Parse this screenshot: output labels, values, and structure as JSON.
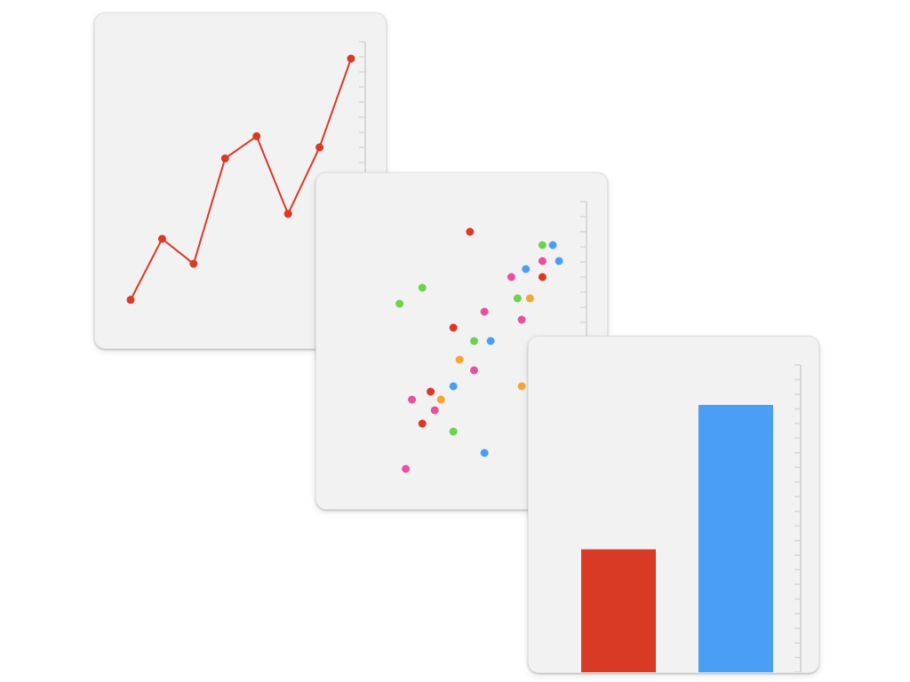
{
  "chart_data": [
    {
      "type": "line",
      "x": [
        1,
        2,
        3,
        4,
        5,
        6,
        7,
        8
      ],
      "series": [
        {
          "values": [
            3,
            25,
            16,
            54,
            62,
            34,
            58,
            90
          ],
          "color": "#d93a26"
        }
      ],
      "ylim": [
        0,
        100
      ],
      "axis_side": "right",
      "grid": false
    },
    {
      "type": "scatter",
      "xlim": [
        0,
        100
      ],
      "ylim": [
        0,
        100
      ],
      "axis_side": "right",
      "grid": false,
      "points": [
        {
          "x": 51,
          "y": 92,
          "color": "#d93a26"
        },
        {
          "x": 86,
          "y": 87,
          "color": "#6dd24f"
        },
        {
          "x": 91,
          "y": 87,
          "color": "#4a9ff5"
        },
        {
          "x": 86,
          "y": 81,
          "color": "#e8509b"
        },
        {
          "x": 94,
          "y": 81,
          "color": "#4a9ff5"
        },
        {
          "x": 78,
          "y": 78,
          "color": "#4a9ff5"
        },
        {
          "x": 86,
          "y": 75,
          "color": "#d93a26"
        },
        {
          "x": 71,
          "y": 75,
          "color": "#e8509b"
        },
        {
          "x": 28,
          "y": 71,
          "color": "#6dd24f"
        },
        {
          "x": 17,
          "y": 65,
          "color": "#6dd24f"
        },
        {
          "x": 74,
          "y": 67,
          "color": "#6dd24f"
        },
        {
          "x": 80,
          "y": 67,
          "color": "#f2a634"
        },
        {
          "x": 58,
          "y": 62,
          "color": "#e8509b"
        },
        {
          "x": 76,
          "y": 59,
          "color": "#e8509b"
        },
        {
          "x": 43,
          "y": 56,
          "color": "#d93a26"
        },
        {
          "x": 53,
          "y": 51,
          "color": "#6dd24f"
        },
        {
          "x": 61,
          "y": 51,
          "color": "#4a9ff5"
        },
        {
          "x": 46,
          "y": 44,
          "color": "#f2a634"
        },
        {
          "x": 53,
          "y": 40,
          "color": "#e8509b"
        },
        {
          "x": 76,
          "y": 34,
          "color": "#f2a634"
        },
        {
          "x": 43,
          "y": 34,
          "color": "#4a9ff5"
        },
        {
          "x": 32,
          "y": 32,
          "color": "#d93a26"
        },
        {
          "x": 23,
          "y": 29,
          "color": "#e8509b"
        },
        {
          "x": 37,
          "y": 29,
          "color": "#f2a634"
        },
        {
          "x": 34,
          "y": 25,
          "color": "#e8509b"
        },
        {
          "x": 28,
          "y": 20,
          "color": "#d93a26"
        },
        {
          "x": 43,
          "y": 17,
          "color": "#6dd24f"
        },
        {
          "x": 58,
          "y": 9,
          "color": "#4a9ff5"
        },
        {
          "x": 20,
          "y": 3,
          "color": "#e8509b"
        }
      ]
    },
    {
      "type": "bar",
      "values": [
        40,
        87
      ],
      "colors": [
        "#d93a26",
        "#4a9ff5"
      ],
      "ylim": [
        0,
        100
      ],
      "axis_side": "right",
      "grid": false
    }
  ]
}
